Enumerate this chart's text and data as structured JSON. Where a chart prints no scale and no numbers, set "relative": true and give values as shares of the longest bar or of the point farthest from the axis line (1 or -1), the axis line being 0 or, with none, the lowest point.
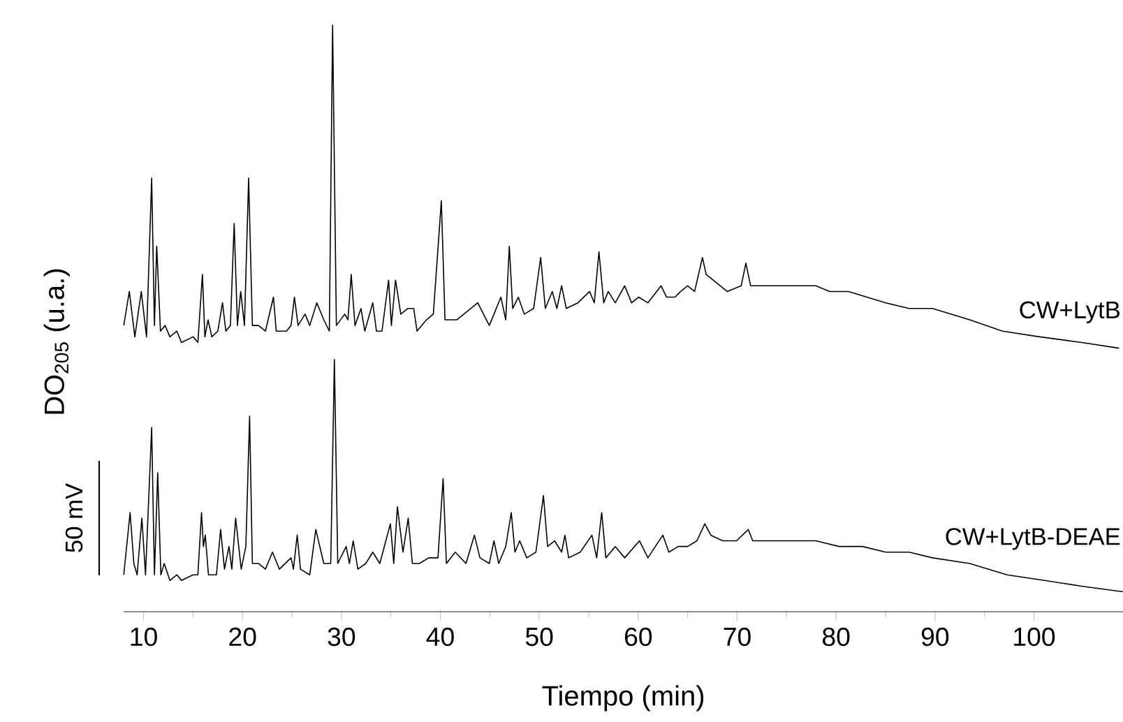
{
  "chart_data": {
    "type": "line",
    "relative": true,
    "xlabel": "Tiempo (min)",
    "ylabel": "DO$_{205}$ (u.a.)",
    "annotations": [
      "50 mV"
    ],
    "xlim": [
      8,
      109
    ],
    "xticks": [
      10,
      20,
      30,
      40,
      50,
      60,
      70,
      80,
      90,
      100
    ],
    "marker": "none",
    "line_style": "solid",
    "series": [
      {
        "name": "CW+LytB",
        "color": "#000000",
        "x": [
          8.0,
          8.56,
          9.12,
          9.77,
          10.3,
          10.82,
          11.1,
          11.33,
          11.71,
          12.18,
          12.66,
          13.37,
          13.83,
          15.01,
          15.49,
          15.95,
          16.2,
          16.52,
          16.9,
          17.51,
          17.98,
          18.32,
          18.78,
          19.16,
          19.49,
          19.82,
          20.2,
          20.62,
          21.0,
          21.61,
          22.32,
          23.13,
          23.41,
          24.44,
          24.91,
          25.25,
          25.62,
          26.32,
          26.8,
          27.51,
          28.22,
          28.78,
          29.11,
          29.49,
          30.34,
          30.66,
          30.99,
          31.37,
          31.98,
          32.36,
          33.17,
          33.54,
          34.1,
          34.77,
          35.05,
          35.47,
          36.0,
          36.7,
          37.31,
          37.64,
          38.59,
          39.29,
          40.1,
          40.47,
          41.65,
          43.07,
          43.78,
          44.95,
          46.12,
          46.61,
          46.97,
          47.31,
          47.88,
          48.49,
          49.43,
          50.14,
          50.61,
          51.31,
          51.78,
          52.26,
          52.73,
          53.9,
          55.09,
          55.56,
          56.03,
          56.51,
          56.97,
          57.68,
          58.63,
          59.33,
          60.04,
          60.98,
          62.31,
          62.87,
          63.72,
          64.29,
          64.99,
          65.7,
          66.49,
          66.87,
          67.58,
          68.99,
          70.41,
          70.88,
          71.36,
          72.77,
          74.19,
          75.6,
          77.95,
          79.36,
          81.26,
          83.14,
          85.02,
          87.38,
          89.74,
          93.51,
          96.82,
          100.58,
          104.82,
          108.6
        ],
        "values": [
          0.47,
          0.53,
          0.45,
          0.53,
          0.45,
          0.73,
          0.47,
          0.61,
          0.46,
          0.47,
          0.45,
          0.46,
          0.44,
          0.45,
          0.44,
          0.56,
          0.45,
          0.48,
          0.45,
          0.46,
          0.51,
          0.46,
          0.47,
          0.65,
          0.47,
          0.53,
          0.47,
          0.73,
          0.47,
          0.47,
          0.46,
          0.52,
          0.46,
          0.46,
          0.47,
          0.52,
          0.47,
          0.49,
          0.47,
          0.51,
          0.48,
          0.46,
          1,
          0.47,
          0.49,
          0.48,
          0.56,
          0.47,
          0.5,
          0.46,
          0.51,
          0.46,
          0.46,
          0.55,
          0.47,
          0.55,
          0.49,
          0.5,
          0.5,
          0.46,
          0.48,
          0.49,
          0.69,
          0.48,
          0.48,
          0.5,
          0.51,
          0.47,
          0.52,
          0.48,
          0.61,
          0.5,
          0.52,
          0.49,
          0.5,
          0.59,
          0.5,
          0.53,
          0.5,
          0.54,
          0.5,
          0.51,
          0.53,
          0.51,
          0.6,
          0.51,
          0.53,
          0.51,
          0.54,
          0.51,
          0.52,
          0.51,
          0.54,
          0.52,
          0.52,
          0.53,
          0.54,
          0.53,
          0.59,
          0.56,
          0.55,
          0.53,
          0.54,
          0.58,
          0.54,
          0.54,
          0.54,
          0.54,
          0.54,
          0.53,
          0.53,
          0.52,
          0.51,
          0.5,
          0.5,
          0.48,
          0.46,
          0.45,
          0.44,
          0.43
        ]
      },
      {
        "name": "CW+LytB-DEAE",
        "color": "#000000",
        "x": [
          8.0,
          8.64,
          9.02,
          9.35,
          9.83,
          10.2,
          10.82,
          11.1,
          11.43,
          11.75,
          12.09,
          12.66,
          13.37,
          13.83,
          15.01,
          15.49,
          15.86,
          16.05,
          16.24,
          16.56,
          17.37,
          17.79,
          18.18,
          18.64,
          18.92,
          19.31,
          19.87,
          20.34,
          20.72,
          21.0,
          21.61,
          22.32,
          23.03,
          23.73,
          24.91,
          25.15,
          25.53,
          25.86,
          26.8,
          27.41,
          28.22,
          28.92,
          29.29,
          29.63,
          30.48,
          30.81,
          31.19,
          31.66,
          32.46,
          33.17,
          33.88,
          34.95,
          35.29,
          35.66,
          36.22,
          36.75,
          37.17,
          37.88,
          38.83,
          39.76,
          40.28,
          40.61,
          41.51,
          42.59,
          43.44,
          44.0,
          44.95,
          45.42,
          45.9,
          46.61,
          47.17,
          47.54,
          48.02,
          48.73,
          49.66,
          50.42,
          50.84,
          51.55,
          52.26,
          52.59,
          52.97,
          54.14,
          55.32,
          55.8,
          56.31,
          56.73,
          57.68,
          58.63,
          60.13,
          60.98,
          62.49,
          63.1,
          64.04,
          64.99,
          65.93,
          66.73,
          67.34,
          68.53,
          69.94,
          71.12,
          71.58,
          73.24,
          75.6,
          77.95,
          80.31,
          82.67,
          85.02,
          87.38,
          89.74,
          93.51,
          97.28,
          101.06,
          104.82,
          109.0
        ],
        "values": [
          0.03,
          0.14,
          0.05,
          0.03,
          0.13,
          0.03,
          0.29,
          0.03,
          0.21,
          0.03,
          0.05,
          0.02,
          0.03,
          0.02,
          0.03,
          0.03,
          0.14,
          0.08,
          0.1,
          0.03,
          0.03,
          0.11,
          0.04,
          0.08,
          0.04,
          0.13,
          0.04,
          0.08,
          0.31,
          0.05,
          0.05,
          0.04,
          0.07,
          0.04,
          0.06,
          0.04,
          0.1,
          0.04,
          0.03,
          0.11,
          0.05,
          0.05,
          0.41,
          0.05,
          0.08,
          0.05,
          0.09,
          0.04,
          0.05,
          0.07,
          0.05,
          0.12,
          0.05,
          0.15,
          0.07,
          0.13,
          0.05,
          0.05,
          0.06,
          0.06,
          0.2,
          0.05,
          0.07,
          0.05,
          0.1,
          0.06,
          0.05,
          0.09,
          0.05,
          0.08,
          0.14,
          0.07,
          0.09,
          0.06,
          0.07,
          0.17,
          0.08,
          0.09,
          0.07,
          0.1,
          0.06,
          0.07,
          0.1,
          0.06,
          0.14,
          0.06,
          0.08,
          0.06,
          0.09,
          0.06,
          0.1,
          0.07,
          0.08,
          0.08,
          0.09,
          0.12,
          0.1,
          0.09,
          0.09,
          0.11,
          0.09,
          0.09,
          0.09,
          0.09,
          0.08,
          0.08,
          0.07,
          0.07,
          0.06,
          0.05,
          0.03,
          0.02,
          0.01,
          0
        ]
      }
    ]
  }
}
